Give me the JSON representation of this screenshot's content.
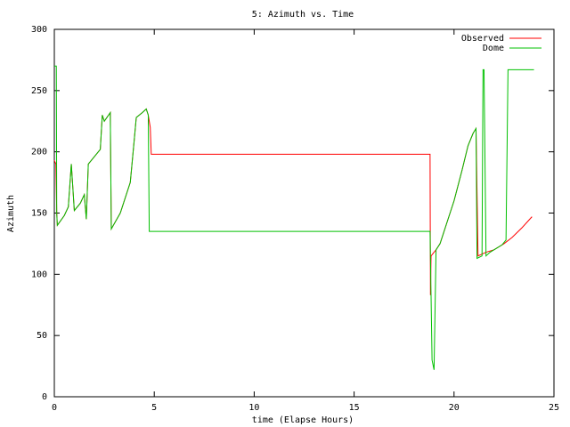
{
  "chart_data": {
    "type": "line",
    "title": "5: Azimuth vs. Time",
    "xlabel": "time (Elapse Hours)",
    "ylabel": "Azimuth",
    "xlim": [
      0,
      25
    ],
    "xticks": [
      0,
      5,
      10,
      15,
      20,
      25
    ],
    "ylim": [
      0,
      300
    ],
    "yticks": [
      0,
      50,
      100,
      150,
      200,
      250,
      300
    ],
    "legend": "upper right",
    "series": [
      {
        "name": "Observed",
        "color": "#ff0000",
        "x": [
          0,
          0.08,
          0.12,
          0.15,
          0.5,
          0.7,
          0.85,
          1.0,
          1.3,
          1.5,
          1.6,
          1.7,
          2.0,
          2.2,
          2.3,
          2.4,
          2.5,
          2.8,
          2.85,
          3.3,
          3.8,
          4.0,
          4.1,
          4.4,
          4.6,
          4.7,
          4.8,
          4.85,
          18.8,
          18.82,
          18.85,
          19.1,
          19.3,
          19.6,
          20.0,
          20.4,
          20.7,
          20.95,
          21.1,
          21.2,
          21.6,
          22.0,
          22.5,
          22.9,
          23.4,
          23.9
        ],
        "values": [
          193,
          190,
          150,
          140,
          148,
          155,
          190,
          152,
          158,
          165,
          145,
          190,
          196,
          200,
          202,
          230,
          225,
          232,
          137,
          150,
          175,
          210,
          228,
          232,
          235,
          230,
          220,
          198,
          198,
          83,
          115,
          120,
          125,
          140,
          160,
          185,
          205,
          215,
          219,
          115,
          118,
          120,
          125,
          130,
          138,
          147
        ]
      },
      {
        "name": "Dome",
        "color": "#00c000",
        "x": [
          0,
          0.1,
          0.12,
          0.15,
          0.5,
          0.7,
          0.85,
          1.0,
          1.3,
          1.5,
          1.6,
          1.7,
          2.0,
          2.2,
          2.3,
          2.4,
          2.5,
          2.8,
          2.85,
          3.3,
          3.8,
          4.0,
          4.1,
          4.4,
          4.6,
          4.7,
          4.75,
          18.8,
          18.9,
          19.0,
          19.1,
          19.3,
          19.6,
          20.0,
          20.4,
          20.7,
          20.95,
          21.1,
          21.15,
          21.4,
          21.45,
          21.5,
          21.6,
          21.8,
          22.0,
          22.4,
          22.6,
          22.7,
          24.0
        ],
        "values": [
          270,
          270,
          150,
          140,
          148,
          155,
          190,
          152,
          158,
          165,
          145,
          190,
          196,
          200,
          202,
          230,
          225,
          232,
          137,
          150,
          175,
          210,
          228,
          232,
          235,
          230,
          135,
          135,
          30,
          22,
          120,
          125,
          140,
          160,
          185,
          205,
          215,
          219,
          113,
          115,
          267,
          267,
          115,
          118,
          120,
          124,
          128,
          267,
          267
        ]
      }
    ]
  }
}
